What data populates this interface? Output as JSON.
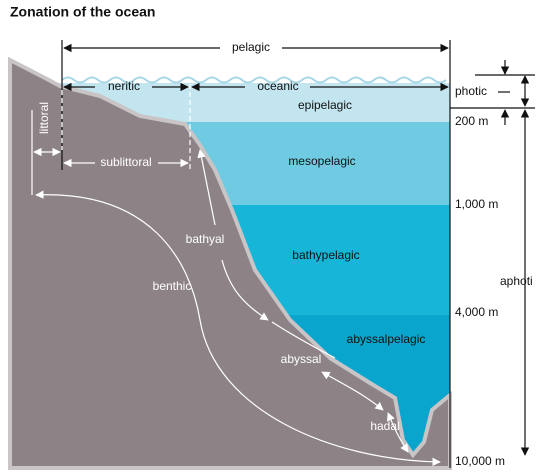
{
  "title": "Zonation of the ocean",
  "zones": {
    "pelagic": "pelagic",
    "neritic": "neritic",
    "oceanic": "oceanic",
    "epipelagic": "epipelagic",
    "mesopelagic": "mesopelagic",
    "bathypelagic": "bathypelagic",
    "abyssalpelagic": "abyssalpelagic",
    "littoral": "littoral",
    "sublittoral": "sublittoral",
    "benthic": "benthic",
    "bathyal": "bathyal",
    "abyssal": "abyssal",
    "hadal": "hadal",
    "photic": "photic",
    "aphotic": "aphoti"
  },
  "depths": [
    "200 m",
    "1,000 m",
    "4,000 m",
    "10,000 m"
  ]
}
